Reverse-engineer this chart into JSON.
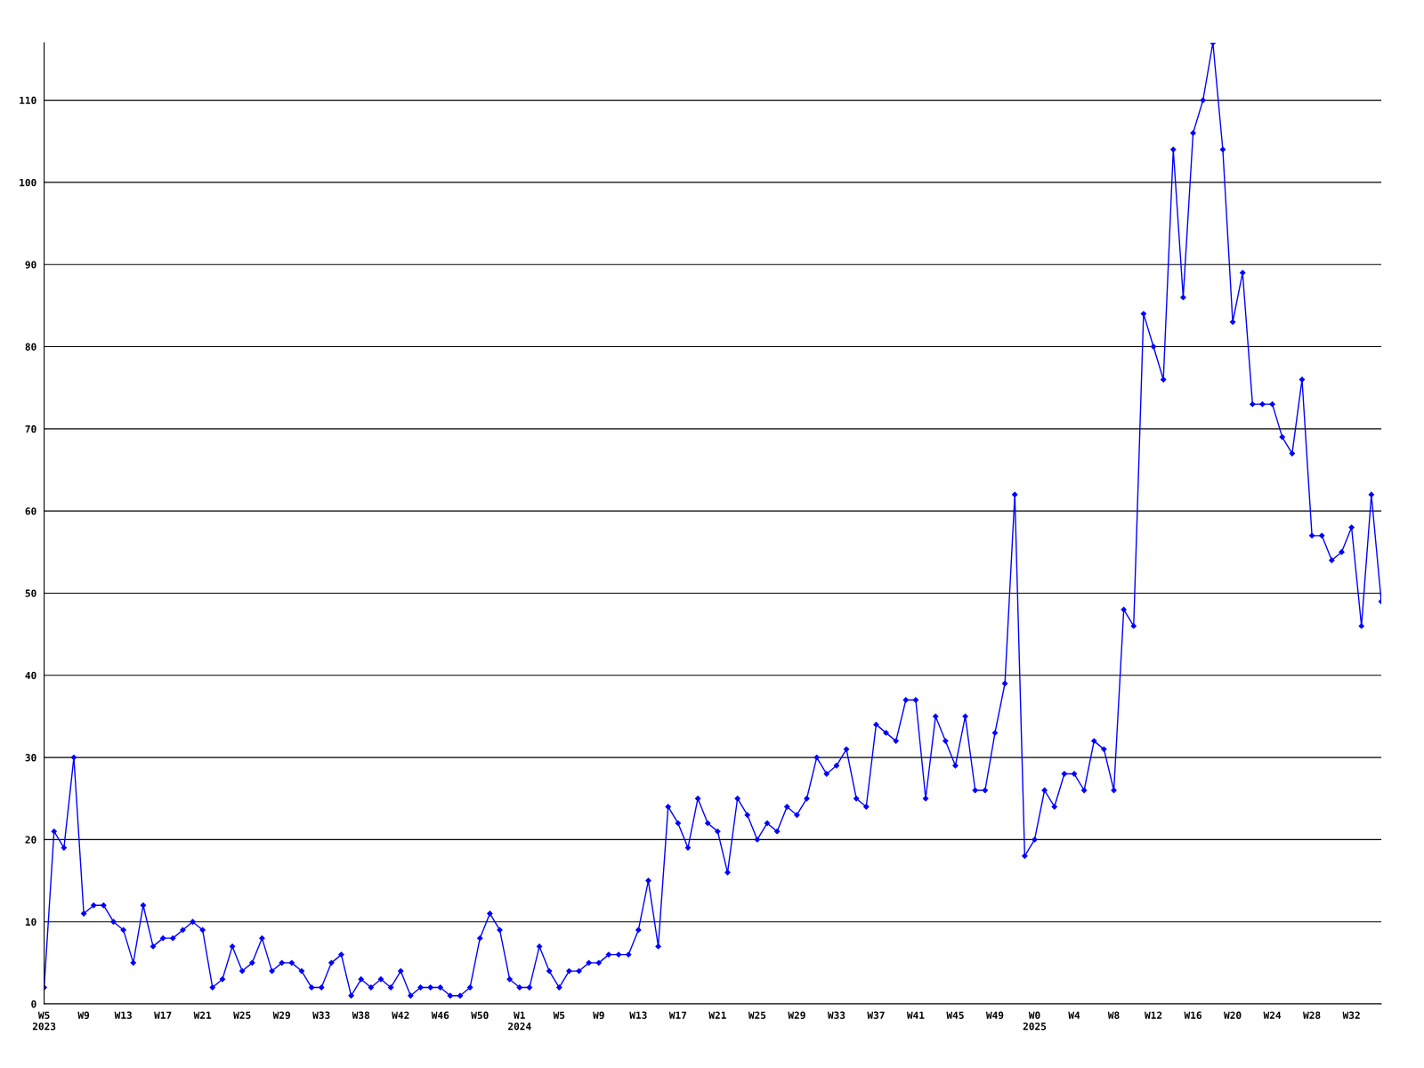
{
  "chart_data": {
    "type": "line",
    "categories": [
      "W5\n2023",
      null,
      null,
      null,
      "W9",
      null,
      null,
      null,
      "W13",
      null,
      null,
      null,
      "W17",
      null,
      null,
      null,
      "W21",
      null,
      null,
      null,
      "W25",
      null,
      null,
      null,
      "W29",
      null,
      null,
      null,
      "W33",
      null,
      null,
      null,
      "W38",
      null,
      null,
      null,
      "W42",
      null,
      null,
      null,
      "W46",
      null,
      null,
      null,
      "W50",
      null,
      null,
      null,
      "W1\n2024",
      null,
      null,
      null,
      "W5",
      null,
      null,
      null,
      "W9",
      null,
      null,
      null,
      "W13",
      null,
      null,
      null,
      "W17",
      null,
      null,
      null,
      "W21",
      null,
      null,
      null,
      "W25",
      null,
      null,
      null,
      "W29",
      null,
      null,
      null,
      "W33",
      null,
      null,
      null,
      "W37",
      null,
      null,
      null,
      "W41",
      null,
      null,
      null,
      "W45",
      null,
      null,
      null,
      "W49",
      null,
      null,
      null,
      "W0\n2025",
      null,
      null,
      null,
      "W4",
      null,
      null,
      null,
      "W8",
      null,
      null,
      null,
      "W12",
      null,
      null,
      null,
      "W16",
      null,
      null,
      null,
      "W20",
      null,
      null,
      null,
      "W24",
      null,
      null,
      null,
      "W28",
      null,
      null,
      null,
      "W32",
      null,
      null,
      null
    ],
    "series": [
      {
        "color": "#0000ff",
        "values": [
          2,
          21,
          19,
          30,
          11,
          12,
          12,
          10,
          9,
          5,
          12,
          7,
          8,
          8,
          9,
          10,
          9,
          2,
          3,
          7,
          4,
          5,
          8,
          4,
          5,
          5,
          4,
          2,
          2,
          5,
          6,
          1,
          3,
          2,
          3,
          2,
          4,
          1,
          2,
          2,
          2,
          1,
          1,
          2,
          8,
          11,
          9,
          3,
          2,
          2,
          7,
          4,
          2,
          4,
          4,
          5,
          5,
          6,
          6,
          6,
          9,
          15,
          7,
          24,
          22,
          19,
          25,
          22,
          21,
          16,
          25,
          23,
          20,
          22,
          21,
          24,
          23,
          25,
          30,
          28,
          29,
          31,
          25,
          24,
          34,
          33,
          32,
          37,
          37,
          25,
          35,
          32,
          29,
          35,
          26,
          26,
          33,
          39,
          62,
          18,
          20,
          26,
          24,
          28,
          28,
          26,
          32,
          31,
          26,
          48,
          46,
          84,
          80,
          76,
          104,
          86,
          106,
          110,
          117,
          104,
          83,
          89,
          73,
          73,
          73,
          69,
          67,
          76,
          57,
          57,
          54,
          55,
          58,
          46,
          62,
          49
        ]
      }
    ],
    "ylim": [
      0,
      117
    ],
    "yticks": [
      0,
      10,
      20,
      30,
      40,
      50,
      60,
      70,
      80,
      90,
      100,
      110
    ],
    "grid": "y",
    "marker": "diamond",
    "line_style": "solid"
  }
}
